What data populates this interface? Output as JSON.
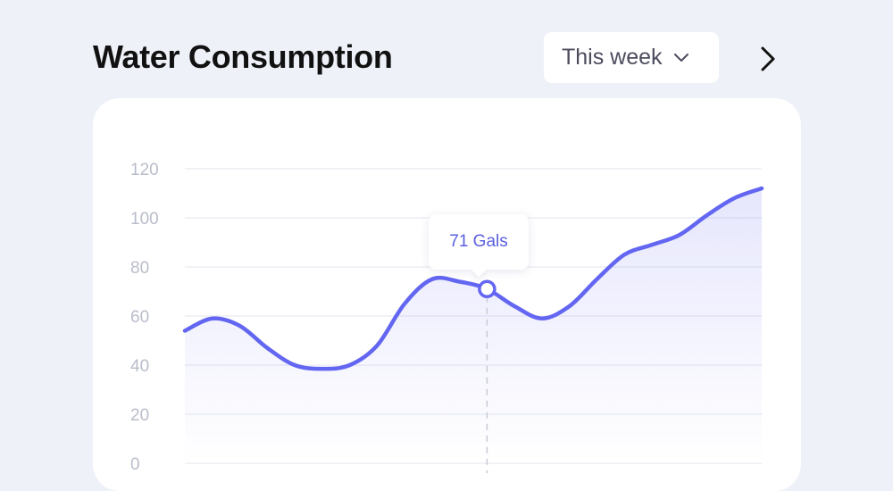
{
  "header": {
    "title": "Water Consumption",
    "period_label": "This week"
  },
  "tooltip": {
    "label": "71 Gals"
  },
  "colors": {
    "line": "#6366f1",
    "grid": "#eceef4",
    "axis_text": "#b9bdca",
    "marker_ring": "#6366f1",
    "guide": "#c8cad4"
  },
  "icons": {
    "dropdown": "chevron-down-icon",
    "next": "chevron-right-icon"
  },
  "chart_data": {
    "type": "area",
    "title": "Water Consumption",
    "xlabel": "",
    "ylabel": "",
    "y_ticks": [
      "0",
      "20",
      "40",
      "60",
      "80",
      "100",
      "120"
    ],
    "ylim": [
      0,
      120
    ],
    "grid": true,
    "series": [
      {
        "values": [
          54,
          59,
          56,
          47,
          40,
          38.5,
          40,
          48,
          65,
          75,
          74,
          71,
          64,
          59,
          64,
          75,
          85,
          89,
          93,
          101,
          108,
          112
        ]
      }
    ],
    "highlighted_index": 11,
    "highlighted_value": 71,
    "highlight_label": "71 Gals"
  }
}
